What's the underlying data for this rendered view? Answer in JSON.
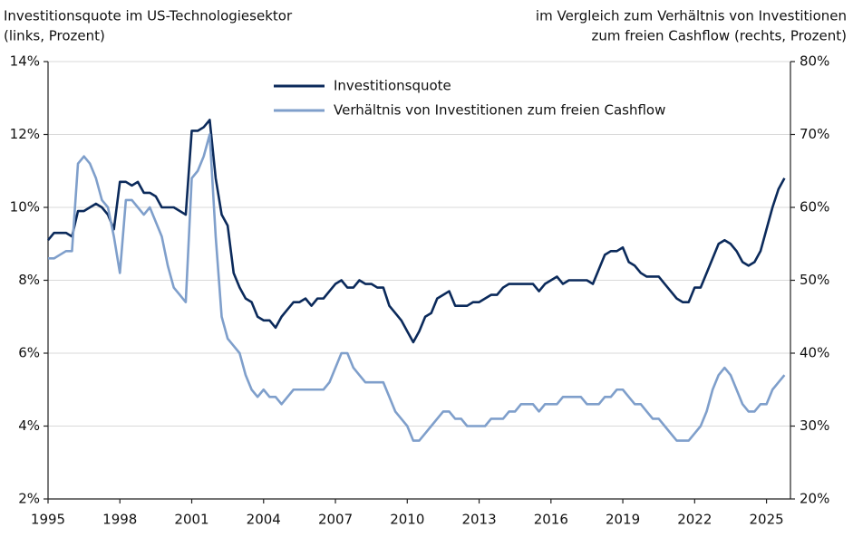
{
  "chart_data": {
    "type": "line",
    "left_title": [
      "Investitionsquote im US-Technologiesektor",
      "(links, Prozent)"
    ],
    "right_title": [
      "im Vergleich zum Verhältnis von Investitionen",
      "zum freien Cashflow (rechts, Prozent)"
    ],
    "x": [
      1995,
      1995.25,
      1995.5,
      1995.75,
      1996,
      1996.25,
      1996.5,
      1996.75,
      1997,
      1997.25,
      1997.5,
      1997.75,
      1998,
      1998.25,
      1998.5,
      1998.75,
      1999,
      1999.25,
      1999.5,
      1999.75,
      2000,
      2000.25,
      2000.5,
      2000.75,
      2001,
      2001.25,
      2001.5,
      2001.75,
      2002,
      2002.25,
      2002.5,
      2002.75,
      2003,
      2003.25,
      2003.5,
      2003.75,
      2004,
      2004.25,
      2004.5,
      2004.75,
      2005,
      2005.25,
      2005.5,
      2005.75,
      2006,
      2006.25,
      2006.5,
      2006.75,
      2007,
      2007.25,
      2007.5,
      2007.75,
      2008,
      2008.25,
      2008.5,
      2008.75,
      2009,
      2009.25,
      2009.5,
      2009.75,
      2010,
      2010.25,
      2010.5,
      2010.75,
      2011,
      2011.25,
      2011.5,
      2011.75,
      2012,
      2012.25,
      2012.5,
      2012.75,
      2013,
      2013.25,
      2013.5,
      2013.75,
      2014,
      2014.25,
      2014.5,
      2014.75,
      2015,
      2015.25,
      2015.5,
      2015.75,
      2016,
      2016.25,
      2016.5,
      2016.75,
      2017,
      2017.25,
      2017.5,
      2017.75,
      2018,
      2018.25,
      2018.5,
      2018.75,
      2019,
      2019.25,
      2019.5,
      2019.75,
      2020,
      2020.25,
      2020.5,
      2020.75,
      2021,
      2021.25,
      2021.5,
      2021.75,
      2022,
      2022.25,
      2022.5,
      2022.75,
      2023,
      2023.25,
      2023.5,
      2023.75,
      2024,
      2024.25,
      2024.5,
      2024.75,
      2025,
      2025.25,
      2025.5,
      2025.75
    ],
    "series": [
      {
        "name": "Investitionsquote",
        "color": "#0b2a5b",
        "axis": "y",
        "values": [
          9.1,
          9.3,
          9.3,
          9.3,
          9.2,
          9.9,
          9.9,
          10.0,
          10.1,
          10.0,
          9.8,
          9.4,
          10.7,
          10.7,
          10.6,
          10.7,
          10.4,
          10.4,
          10.3,
          10.0,
          10.0,
          10.0,
          9.9,
          9.8,
          12.1,
          12.1,
          12.2,
          12.4,
          10.8,
          9.8,
          9.5,
          8.2,
          7.8,
          7.5,
          7.4,
          7.0,
          6.9,
          6.9,
          6.7,
          7.0,
          7.2,
          7.4,
          7.4,
          7.5,
          7.3,
          7.5,
          7.5,
          7.7,
          7.9,
          8.0,
          7.8,
          7.8,
          8.0,
          7.9,
          7.9,
          7.8,
          7.8,
          7.3,
          7.1,
          6.9,
          6.6,
          6.3,
          6.6,
          7.0,
          7.1,
          7.5,
          7.6,
          7.7,
          7.3,
          7.3,
          7.3,
          7.4,
          7.4,
          7.5,
          7.6,
          7.6,
          7.8,
          7.9,
          7.9,
          7.9,
          7.9,
          7.9,
          7.7,
          7.9,
          8.0,
          8.1,
          7.9,
          8.0,
          8.0,
          8.0,
          8.0,
          7.9,
          8.3,
          8.7,
          8.8,
          8.8,
          8.9,
          8.5,
          8.4,
          8.2,
          8.1,
          8.1,
          8.1,
          7.9,
          7.7,
          7.5,
          7.4,
          7.4,
          7.8,
          7.8,
          8.2,
          8.6,
          9.0,
          9.1,
          9.0,
          8.8,
          8.5,
          8.4,
          8.5,
          8.8,
          9.4,
          10.0,
          10.5,
          10.8
        ]
      },
      {
        "name": "Verhältnis von Investitionen zum freien Cashflow",
        "color": "#7f9fcb",
        "axis": "y2",
        "values": [
          53,
          53,
          53.5,
          54,
          54,
          66,
          67,
          66,
          64,
          61,
          60,
          56,
          51,
          61,
          61,
          60,
          59,
          60,
          58,
          56,
          52,
          49,
          48,
          47,
          64,
          65,
          67,
          70,
          56,
          45,
          42,
          41,
          40,
          37,
          35,
          34,
          35,
          34,
          34,
          33,
          34,
          35,
          35,
          35,
          35,
          35,
          35,
          36,
          38,
          40,
          40,
          38,
          37,
          36,
          36,
          36,
          36,
          34,
          32,
          31,
          30,
          28,
          28,
          29,
          30,
          31,
          32,
          32,
          31,
          31,
          30,
          30,
          30,
          30,
          31,
          31,
          31,
          32,
          32,
          33,
          33,
          33,
          32,
          33,
          33,
          33,
          34,
          34,
          34,
          34,
          33,
          33,
          33,
          34,
          34,
          35,
          35,
          34,
          33,
          33,
          32,
          31,
          31,
          30,
          29,
          28,
          28,
          28,
          29,
          30,
          32,
          35,
          37,
          38,
          37,
          35,
          33,
          32,
          32,
          33,
          33,
          35,
          36,
          37
        ]
      }
    ],
    "xlim": [
      1995,
      2026
    ],
    "xticks": [
      1995,
      1998,
      2001,
      2004,
      2007,
      2010,
      2013,
      2016,
      2019,
      2022,
      2025
    ],
    "ylim": [
      2,
      14
    ],
    "yticks": [
      {
        "value": 2,
        "label": "2%"
      },
      {
        "value": 4,
        "label": "4%"
      },
      {
        "value": 6,
        "label": "6%"
      },
      {
        "value": 8,
        "label": "8%"
      },
      {
        "value": 10,
        "label": "10%"
      },
      {
        "value": 12,
        "label": "12%"
      },
      {
        "value": 14,
        "label": "14%"
      }
    ],
    "y2lim": [
      20,
      80
    ],
    "y2ticks": [
      {
        "value": 20,
        "label": "20%"
      },
      {
        "value": 30,
        "label": "30%"
      },
      {
        "value": 40,
        "label": "40%"
      },
      {
        "value": 50,
        "label": "50%"
      },
      {
        "value": 60,
        "label": "60%"
      },
      {
        "value": 70,
        "label": "70%"
      },
      {
        "value": 80,
        "label": "80%"
      }
    ],
    "grid": true,
    "legend": "top"
  }
}
